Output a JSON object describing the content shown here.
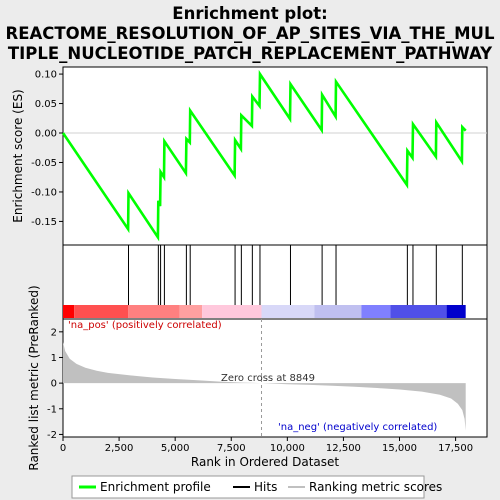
{
  "title_lines": [
    "Enrichment plot:",
    "REACTOME_RESOLUTION_OF_AP_SITES_VIA_THE_MUL",
    "TIPLE_NUCLEOTIDE_PATCH_REPLACEMENT_PATHWAY"
  ],
  "labels": {
    "es_ylabel": "Enrichment score (ES)",
    "rank_ylabel": "Ranked list metric (PreRanked)",
    "xlabel": "Rank in Ordered Dataset",
    "pos_note": "'na_pos' (positively correlated)",
    "neg_note": "'na_neg' (negatively correlated)",
    "zero_cross": "Zero cross at 8849"
  },
  "legend": {
    "items": [
      {
        "label": "Enrichment profile",
        "color": "#00ff00"
      },
      {
        "label": "Hits",
        "color": "#000000"
      },
      {
        "label": "Ranking metric scores",
        "color": "#c0c0c0"
      }
    ]
  },
  "colors": {
    "profile": "#00ff00",
    "metric_fill": "#c0c0c0",
    "pos_text": "#cc0000",
    "neg_text": "#0000cc"
  },
  "chart_data": {
    "type": "line",
    "x_range": [
      0,
      18900
    ],
    "x_ticks": [
      0,
      2500,
      5000,
      7500,
      10000,
      12500,
      15000,
      17500
    ],
    "x_tick_labels": [
      "0",
      "2,500",
      "5,000",
      "7,500",
      "10,000",
      "12,500",
      "15,000",
      "17,500"
    ],
    "zero_cross": 8849,
    "total_rank": 17950,
    "es": {
      "ylim": [
        -0.19,
        0.112
      ],
      "y_ticks": [
        0.1,
        0.05,
        0.0,
        -0.05,
        -0.1,
        -0.15
      ],
      "y_tick_labels": [
        "0.10",
        "0.05",
        "0.00",
        "-0.05",
        "-0.10",
        "-0.15"
      ],
      "points": [
        [
          0,
          0.0
        ],
        [
          2900,
          -0.163
        ],
        [
          2920,
          -0.102
        ],
        [
          4230,
          -0.177
        ],
        [
          4250,
          -0.115
        ],
        [
          4330,
          -0.124
        ],
        [
          4350,
          -0.066
        ],
        [
          4500,
          -0.075
        ],
        [
          4520,
          -0.014
        ],
        [
          5480,
          -0.068
        ],
        [
          5500,
          -0.01
        ],
        [
          5650,
          -0.016
        ],
        [
          5670,
          0.038
        ],
        [
          7650,
          -0.072
        ],
        [
          7670,
          -0.012
        ],
        [
          7930,
          -0.027
        ],
        [
          7950,
          0.03
        ],
        [
          8420,
          0.012
        ],
        [
          8440,
          0.062
        ],
        [
          8760,
          0.046
        ],
        [
          8780,
          0.1
        ],
        [
          10120,
          0.024
        ],
        [
          10140,
          0.083
        ],
        [
          11530,
          0.005
        ],
        [
          11550,
          0.065
        ],
        [
          12150,
          0.028
        ],
        [
          12170,
          0.087
        ],
        [
          15330,
          -0.088
        ],
        [
          15350,
          -0.03
        ],
        [
          15580,
          -0.042
        ],
        [
          15600,
          0.015
        ],
        [
          16620,
          -0.04
        ],
        [
          16640,
          0.018
        ],
        [
          17780,
          -0.048
        ],
        [
          17800,
          0.01
        ],
        [
          17950,
          0.004
        ]
      ]
    },
    "hits": [
      2920,
      4250,
      4350,
      4520,
      5500,
      5670,
      7670,
      7950,
      8440,
      8780,
      10140,
      11550,
      12170,
      15350,
      15600,
      16640,
      17800
    ],
    "metric": {
      "ylim": [
        -2.1,
        2.5
      ],
      "y_ticks": [
        2,
        1,
        0,
        -1,
        -2
      ],
      "y_tick_labels": [
        "2",
        "1",
        "0",
        "-1",
        "-2"
      ],
      "points": [
        [
          0,
          1.6
        ],
        [
          100,
          1.25
        ],
        [
          300,
          0.95
        ],
        [
          600,
          0.75
        ],
        [
          1000,
          0.6
        ],
        [
          1500,
          0.48
        ],
        [
          2000,
          0.4
        ],
        [
          3000,
          0.3
        ],
        [
          4000,
          0.22
        ],
        [
          5000,
          0.16
        ],
        [
          6000,
          0.11
        ],
        [
          7000,
          0.06
        ],
        [
          8000,
          0.02
        ],
        [
          8849,
          0.0
        ],
        [
          10000,
          -0.04
        ],
        [
          11000,
          -0.07
        ],
        [
          12000,
          -0.1
        ],
        [
          13000,
          -0.14
        ],
        [
          14000,
          -0.19
        ],
        [
          15000,
          -0.25
        ],
        [
          16000,
          -0.33
        ],
        [
          16800,
          -0.45
        ],
        [
          17300,
          -0.6
        ],
        [
          17600,
          -0.8
        ],
        [
          17800,
          -1.05
        ],
        [
          17900,
          -1.4
        ],
        [
          17950,
          -1.85
        ]
      ]
    },
    "rank_bar": {
      "segments": [
        {
          "start": 0,
          "end": 500,
          "color": "#ff0000"
        },
        {
          "start": 500,
          "end": 2900,
          "color": "#ff5050"
        },
        {
          "start": 2900,
          "end": 5200,
          "color": "#ff8080"
        },
        {
          "start": 5200,
          "end": 6200,
          "color": "#ffa0a0"
        },
        {
          "start": 6200,
          "end": 8849,
          "color": "#ffc8dc"
        },
        {
          "start": 8849,
          "end": 11200,
          "color": "#d8d8f8"
        },
        {
          "start": 11200,
          "end": 13300,
          "color": "#c0c0f0"
        },
        {
          "start": 13300,
          "end": 14600,
          "color": "#8080ff"
        },
        {
          "start": 14600,
          "end": 17100,
          "color": "#5050e8"
        },
        {
          "start": 17100,
          "end": 17950,
          "color": "#0000cc"
        }
      ]
    }
  }
}
